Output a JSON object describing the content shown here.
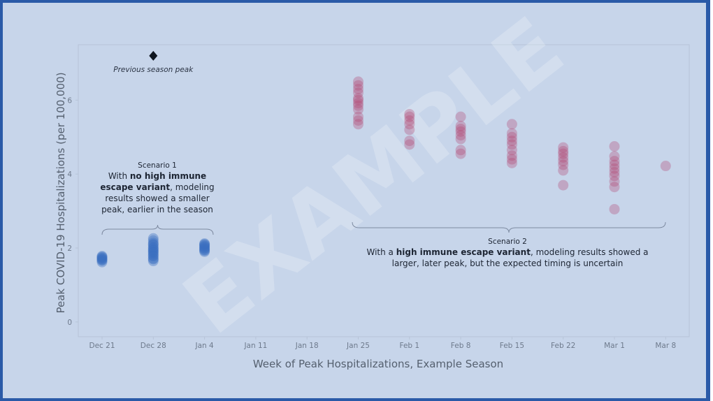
{
  "chart_data": {
    "type": "scatter",
    "xlabel": "Week of Peak Hospitalizations, Example Season",
    "ylabel": "Peak COVID-19 Hospitalizations (per 100,000)",
    "categories": [
      "Dec 21",
      "Dec 28",
      "Jan 4",
      "Jan 11",
      "Jan 18",
      "Jan 25",
      "Feb 1",
      "Feb 8",
      "Feb 15",
      "Feb 22",
      "Mar 1",
      "Mar 8"
    ],
    "ylim": [
      -0.4,
      7.5
    ],
    "yticks": [
      "0",
      "2",
      "4",
      "6"
    ],
    "grid": false,
    "watermark": "EXAMPLE",
    "colors": {
      "scenario1": "#3a6fc0",
      "scenario2": "#b0456f",
      "marker": "#0f1620"
    },
    "series": [
      {
        "points": [
          {
            "x": "Dec 21",
            "ys": [
              1.62,
              1.66,
              1.7,
              1.74,
              1.78,
              1.68,
              1.72,
              1.76
            ]
          },
          {
            "x": "Dec 28",
            "ys": [
              1.65,
              1.72,
              1.78,
              1.84,
              1.9,
              1.96,
              2.02,
              2.08,
              2.14,
              2.2,
              2.26,
              1.7,
              1.8,
              1.88,
              1.94,
              2.0,
              2.1
            ]
          },
          {
            "x": "Jan 4",
            "ys": [
              1.9,
              1.95,
              2.0,
              2.05,
              2.1,
              1.93,
              1.98,
              2.03,
              2.08,
              2.12
            ]
          }
        ]
      },
      {
        "points": [
          {
            "x": "Jan 25",
            "ys": [
              5.35,
              5.45,
              5.55,
              5.75,
              5.85,
              5.92,
              6.0,
              6.05,
              6.2,
              6.3,
              6.4,
              6.5
            ]
          },
          {
            "x": "Feb 1",
            "ys": [
              4.8,
              4.9,
              5.2,
              5.35,
              5.45,
              5.55,
              5.62
            ]
          },
          {
            "x": "Feb 8",
            "ys": [
              4.55,
              4.65,
              4.95,
              5.05,
              5.15,
              5.22,
              5.3,
              5.55
            ]
          },
          {
            "x": "Feb 15",
            "ys": [
              4.3,
              4.4,
              4.5,
              4.65,
              4.8,
              4.9,
              5.0,
              5.1,
              5.35
            ]
          },
          {
            "x": "Feb 22",
            "ys": [
              3.7,
              4.1,
              4.25,
              4.35,
              4.45,
              4.55,
              4.62,
              4.72
            ]
          },
          {
            "x": "Mar 1",
            "ys": [
              3.05,
              3.65,
              3.8,
              3.95,
              4.05,
              4.15,
              4.25,
              4.35,
              4.48,
              4.75
            ]
          },
          {
            "x": "Mar 8",
            "ys": [
              4.22
            ]
          }
        ]
      }
    ],
    "marker": {
      "x": "Dec 28",
      "y": 7.2,
      "shape": "diamond",
      "label": "Previous season peak"
    },
    "annotations": {
      "scenario1": {
        "title": "Scenario 1",
        "lines": [
          [
            {
              "t": "With "
            },
            {
              "t": "no high immune",
              "b": true
            }
          ],
          [
            {
              "t": "escape variant",
              "b": true
            },
            {
              "t": ", modeling"
            }
          ],
          [
            {
              "t": "results showed a smaller"
            }
          ],
          [
            {
              "t": "peak, earlier in the season"
            }
          ]
        ]
      },
      "scenario2": {
        "title": "Scenario 2",
        "lines": [
          [
            {
              "t": "With a "
            },
            {
              "t": "high immune escape variant",
              "b": true
            },
            {
              "t": ", modeling results showed a"
            }
          ],
          [
            {
              "t": "larger, later peak, but the expected timing is uncertain"
            }
          ]
        ]
      }
    }
  }
}
